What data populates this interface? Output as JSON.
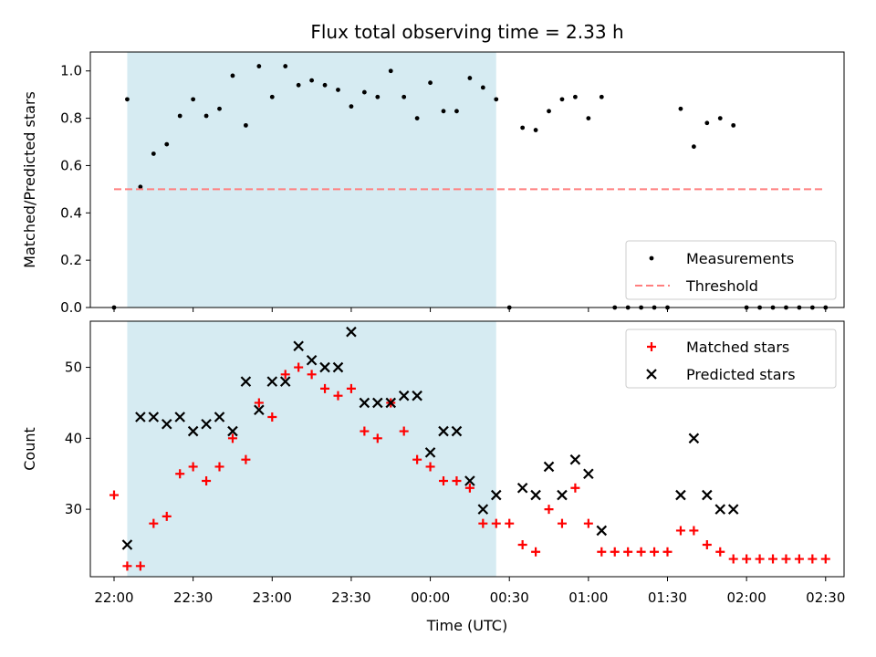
{
  "chart_data": {
    "type": "scatter",
    "title": "Flux total observing time = 2.33 h",
    "xlabel": "Time (UTC)",
    "x_tick_labels": [
      "22:00",
      "22:30",
      "23:00",
      "23:30",
      "00:00",
      "00:30",
      "01:00",
      "01:30",
      "02:00",
      "02:30"
    ],
    "x_ticks_minutes": [
      0,
      30,
      60,
      90,
      120,
      150,
      180,
      210,
      240,
      270
    ],
    "x_unit": "minutes after 22:00 UTC",
    "xlim": [
      -9,
      277
    ],
    "shaded_interval": [
      5,
      145
    ],
    "shade_color": "#add8e6",
    "panels": [
      {
        "ylabel": "Matched/Predicted stars",
        "ylim": [
          0,
          1.08
        ],
        "y_ticks": [
          0.0,
          0.2,
          0.4,
          0.6,
          0.8,
          1.0
        ],
        "y_tick_labels": [
          "0.0",
          "0.2",
          "0.4",
          "0.6",
          "0.8",
          "1.0"
        ],
        "legend_position": "bottom-right",
        "series": [
          {
            "name": "Measurements",
            "marker": "dot",
            "color": "#000000",
            "x": [
              0,
              5,
              10,
              15,
              20,
              25,
              30,
              35,
              40,
              45,
              50,
              55,
              60,
              65,
              70,
              75,
              80,
              85,
              90,
              95,
              100,
              105,
              110,
              115,
              120,
              125,
              130,
              135,
              140,
              145,
              150,
              155,
              160,
              165,
              170,
              175,
              180,
              185,
              190,
              195,
              200,
              205,
              210,
              215,
              220,
              225,
              230,
              235,
              240,
              245,
              250,
              255,
              260,
              265,
              270
            ],
            "y": [
              0.0,
              0.88,
              0.51,
              0.65,
              0.69,
              0.81,
              0.88,
              0.81,
              0.84,
              0.98,
              0.77,
              1.02,
              0.89,
              1.02,
              0.94,
              0.96,
              0.94,
              0.92,
              0.85,
              0.91,
              0.89,
              1.0,
              0.89,
              0.8,
              0.95,
              0.83,
              0.83,
              0.97,
              0.93,
              0.88,
              0.0,
              0.76,
              0.75,
              0.83,
              0.88,
              0.89,
              0.8,
              0.89,
              0.0,
              0.0,
              0.0,
              0.0,
              0.0,
              0.84,
              0.68,
              0.78,
              0.8,
              0.77,
              0.0,
              0.0,
              0.0,
              0.0,
              0.0,
              0.0,
              0.0
            ]
          },
          {
            "name": "Threshold",
            "marker": "dashed-line",
            "color": "#ff7f7f",
            "x": [
              0,
              270
            ],
            "y": [
              0.5,
              0.5
            ]
          }
        ]
      },
      {
        "ylabel": "Count",
        "ylim": [
          20.5,
          56.5
        ],
        "y_ticks": [
          30,
          40,
          50
        ],
        "y_tick_labels": [
          "30",
          "40",
          "50"
        ],
        "legend_position": "top-right",
        "series": [
          {
            "name": "Matched stars",
            "marker": "plus",
            "color": "#ff0000",
            "x": [
              0,
              5,
              10,
              15,
              20,
              25,
              30,
              35,
              40,
              45,
              50,
              55,
              60,
              65,
              70,
              75,
              80,
              85,
              90,
              95,
              100,
              105,
              110,
              115,
              120,
              125,
              130,
              135,
              140,
              145,
              150,
              155,
              160,
              165,
              170,
              175,
              180,
              185,
              190,
              195,
              200,
              205,
              210,
              215,
              220,
              225,
              230,
              235,
              240,
              245,
              250,
              255,
              260,
              265,
              270
            ],
            "y": [
              32,
              22,
              22,
              28,
              29,
              35,
              36,
              34,
              36,
              40,
              37,
              45,
              43,
              49,
              50,
              49,
              47,
              46,
              47,
              41,
              40,
              45,
              41,
              37,
              36,
              34,
              34,
              33,
              28,
              28,
              28,
              25,
              24,
              30,
              28,
              33,
              28,
              24,
              24,
              24,
              24,
              24,
              24,
              27,
              27,
              25,
              24,
              23,
              23,
              23,
              23,
              23,
              23,
              23,
              23
            ]
          },
          {
            "name": "Predicted stars",
            "marker": "x",
            "color": "#000000",
            "x": [
              5,
              10,
              15,
              20,
              25,
              30,
              35,
              40,
              45,
              50,
              55,
              60,
              65,
              70,
              75,
              80,
              85,
              90,
              95,
              100,
              105,
              110,
              115,
              120,
              125,
              130,
              135,
              140,
              145,
              155,
              160,
              165,
              170,
              175,
              180,
              185,
              215,
              220,
              225,
              230,
              235
            ],
            "y": [
              25,
              43,
              43,
              42,
              43,
              41,
              42,
              43,
              41,
              48,
              44,
              48,
              48,
              53,
              51,
              50,
              50,
              55,
              45,
              45,
              45,
              46,
              46,
              38,
              41,
              41,
              34,
              30,
              32,
              33,
              32,
              36,
              32,
              37,
              35,
              27,
              32,
              40,
              32,
              30,
              30
            ]
          }
        ]
      }
    ]
  }
}
